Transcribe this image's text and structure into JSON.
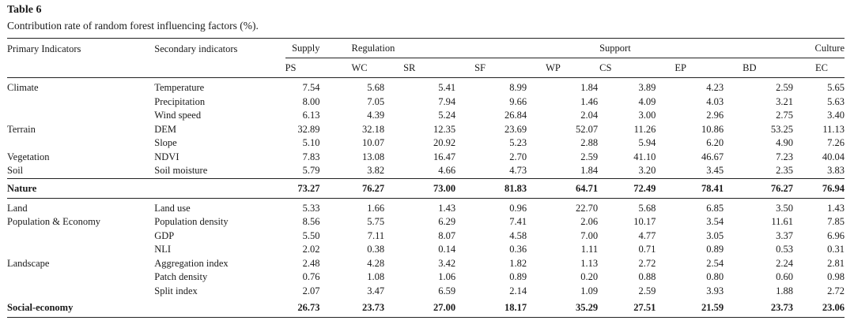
{
  "title": "Table 6",
  "caption": "Contribution rate of random forest influencing factors (%).",
  "header": {
    "primary": "Primary Indicators",
    "secondary": "Secondary indicators",
    "groups": {
      "supply": "Supply",
      "regulation": "Regulation",
      "support": "Support",
      "culture": "Culture"
    },
    "columns": [
      "PS",
      "WC",
      "SR",
      "SF",
      "WP",
      "CS",
      "EP",
      "BD",
      "EC"
    ]
  },
  "nature_rows": [
    {
      "primary": "Climate",
      "secondary": "Temperature",
      "values": [
        "7.54",
        "5.68",
        "5.41",
        "8.99",
        "1.84",
        "3.89",
        "4.23",
        "2.59",
        "5.65"
      ]
    },
    {
      "primary": "",
      "secondary": "Precipitation",
      "values": [
        "8.00",
        "7.05",
        "7.94",
        "9.66",
        "1.46",
        "4.09",
        "4.03",
        "3.21",
        "5.63"
      ]
    },
    {
      "primary": "",
      "secondary": "Wind speed",
      "values": [
        "6.13",
        "4.39",
        "5.24",
        "26.84",
        "2.04",
        "3.00",
        "2.96",
        "2.75",
        "3.40"
      ]
    },
    {
      "primary": "Terrain",
      "secondary": "DEM",
      "values": [
        "32.89",
        "32.18",
        "12.35",
        "23.69",
        "52.07",
        "11.26",
        "10.86",
        "53.25",
        "11.13"
      ]
    },
    {
      "primary": "",
      "secondary": "Slope",
      "values": [
        "5.10",
        "10.07",
        "20.92",
        "5.23",
        "2.88",
        "5.94",
        "6.20",
        "4.90",
        "7.26"
      ]
    },
    {
      "primary": "Vegetation",
      "secondary": "NDVI",
      "values": [
        "7.83",
        "13.08",
        "16.47",
        "2.70",
        "2.59",
        "41.10",
        "46.67",
        "7.23",
        "40.04"
      ]
    },
    {
      "primary": "Soil",
      "secondary": "Soil moisture",
      "values": [
        "5.79",
        "3.82",
        "4.66",
        "4.73",
        "1.84",
        "3.20",
        "3.45",
        "2.35",
        "3.83"
      ]
    }
  ],
  "nature_total": {
    "label": "Nature",
    "values": [
      "73.27",
      "76.27",
      "73.00",
      "81.83",
      "64.71",
      "72.49",
      "78.41",
      "76.27",
      "76.94"
    ]
  },
  "social_rows": [
    {
      "primary": "Land",
      "secondary": "Land use",
      "values": [
        "5.33",
        "1.66",
        "1.43",
        "0.96",
        "22.70",
        "5.68",
        "6.85",
        "3.50",
        "1.43"
      ]
    },
    {
      "primary": "Population & Economy",
      "secondary": "Population density",
      "values": [
        "8.56",
        "5.75",
        "6.29",
        "7.41",
        "2.06",
        "10.17",
        "3.54",
        "11.61",
        "7.85"
      ]
    },
    {
      "primary": "",
      "secondary": "GDP",
      "values": [
        "5.50",
        "7.11",
        "8.07",
        "4.58",
        "7.00",
        "4.77",
        "3.05",
        "3.37",
        "6.96"
      ]
    },
    {
      "primary": "",
      "secondary": "NLI",
      "values": [
        "2.02",
        "0.38",
        "0.14",
        "0.36",
        "1.11",
        "0.71",
        "0.89",
        "0.53",
        "0.31"
      ]
    },
    {
      "primary": "Landscape",
      "secondary": "Aggregation index",
      "values": [
        "2.48",
        "4.28",
        "3.42",
        "1.82",
        "1.13",
        "2.72",
        "2.54",
        "2.24",
        "2.81"
      ]
    },
    {
      "primary": "",
      "secondary": "Patch density",
      "values": [
        "0.76",
        "1.08",
        "1.06",
        "0.89",
        "0.20",
        "0.88",
        "0.80",
        "0.60",
        "0.98"
      ]
    },
    {
      "primary": "",
      "secondary": "Split index",
      "values": [
        "2.07",
        "3.47",
        "6.59",
        "2.14",
        "1.09",
        "2.59",
        "3.93",
        "1.88",
        "2.72"
      ]
    }
  ],
  "social_total": {
    "label": "Social-economy",
    "values": [
      "26.73",
      "23.73",
      "27.00",
      "18.17",
      "35.29",
      "27.51",
      "21.59",
      "23.73",
      "23.06"
    ]
  }
}
